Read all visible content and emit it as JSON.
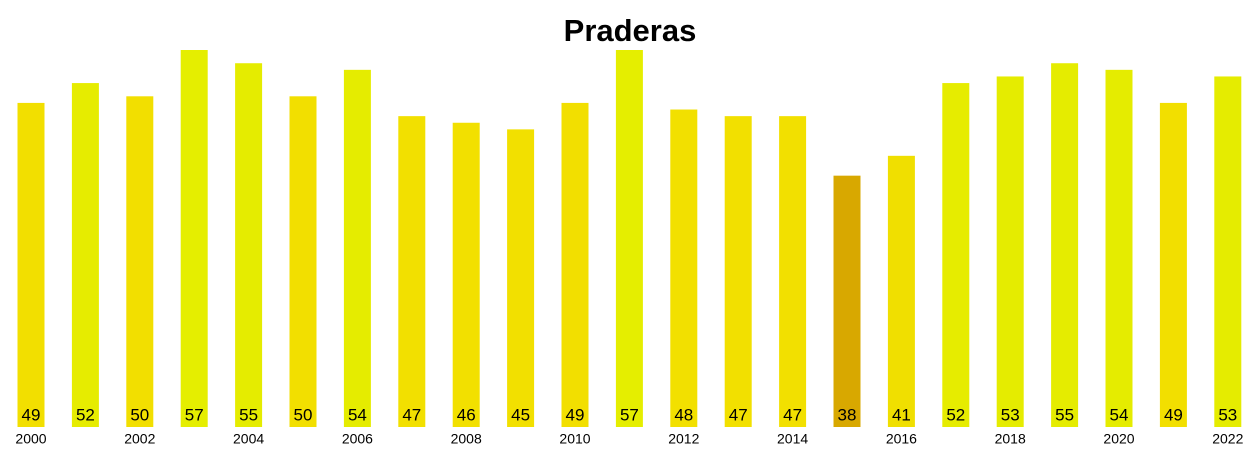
{
  "chart_data": {
    "type": "bar",
    "title": "Praderas",
    "categories": [
      "2000",
      null,
      "2002",
      null,
      "2004",
      null,
      "2006",
      null,
      "2008",
      null,
      "2010",
      null,
      "2012",
      null,
      "2014",
      null,
      "2016",
      null,
      "2018",
      null,
      "2020",
      null,
      "2022"
    ],
    "values": [
      49,
      52,
      50,
      57,
      55,
      50,
      54,
      47,
      46,
      45,
      49,
      57,
      48,
      47,
      47,
      38,
      41,
      52,
      53,
      55,
      54,
      49,
      53
    ],
    "colors": [
      "#f2df00",
      "#e6ec00",
      "#f2df00",
      "#e5ee00",
      "#e5ec00",
      "#f2df00",
      "#e5ec00",
      "#f2e000",
      "#f2e000",
      "#f2e000",
      "#f2df00",
      "#e5ee00",
      "#f2e000",
      "#f2e000",
      "#f2e000",
      "#d8a800",
      "#f0df00",
      "#e6ec00",
      "#e5ec00",
      "#e5ec00",
      "#e5ec00",
      "#f2df00",
      "#e5ec00"
    ],
    "ylim": [
      0,
      57
    ]
  }
}
